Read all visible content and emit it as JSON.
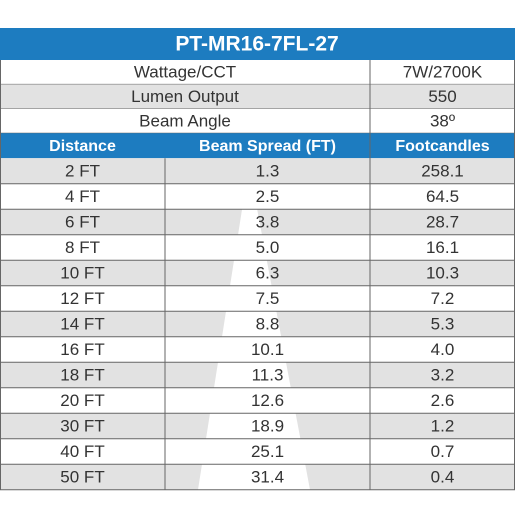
{
  "title": "PT-MR16-7FL-27",
  "specs": [
    [
      "Wattage/CCT",
      "7W/2700K"
    ],
    [
      "Lumen Output",
      "550"
    ],
    [
      "Beam Angle",
      "38º"
    ]
  ],
  "header": [
    "Distance",
    "Beam Spread (FT)",
    "Footcandles"
  ],
  "rows": [
    [
      "2 FT",
      "1.3",
      "258.1"
    ],
    [
      "4 FT",
      "2.5",
      "64.5"
    ],
    [
      "6 FT",
      "3.8",
      "28.7"
    ],
    [
      "8 FT",
      "5.0",
      "16.1"
    ],
    [
      "10 FT",
      "6.3",
      "10.3"
    ],
    [
      "12 FT",
      "7.5",
      "7.2"
    ],
    [
      "14 FT",
      "8.8",
      "5.3"
    ],
    [
      "16 FT",
      "10.1",
      "4.0"
    ],
    [
      "18 FT",
      "11.3",
      "3.2"
    ],
    [
      "20 FT",
      "12.6",
      "2.6"
    ],
    [
      "30 FT",
      "18.9",
      "1.2"
    ],
    [
      "40 FT",
      "25.1",
      "0.7"
    ],
    [
      "50 FT",
      "31.4",
      "0.4"
    ]
  ]
}
